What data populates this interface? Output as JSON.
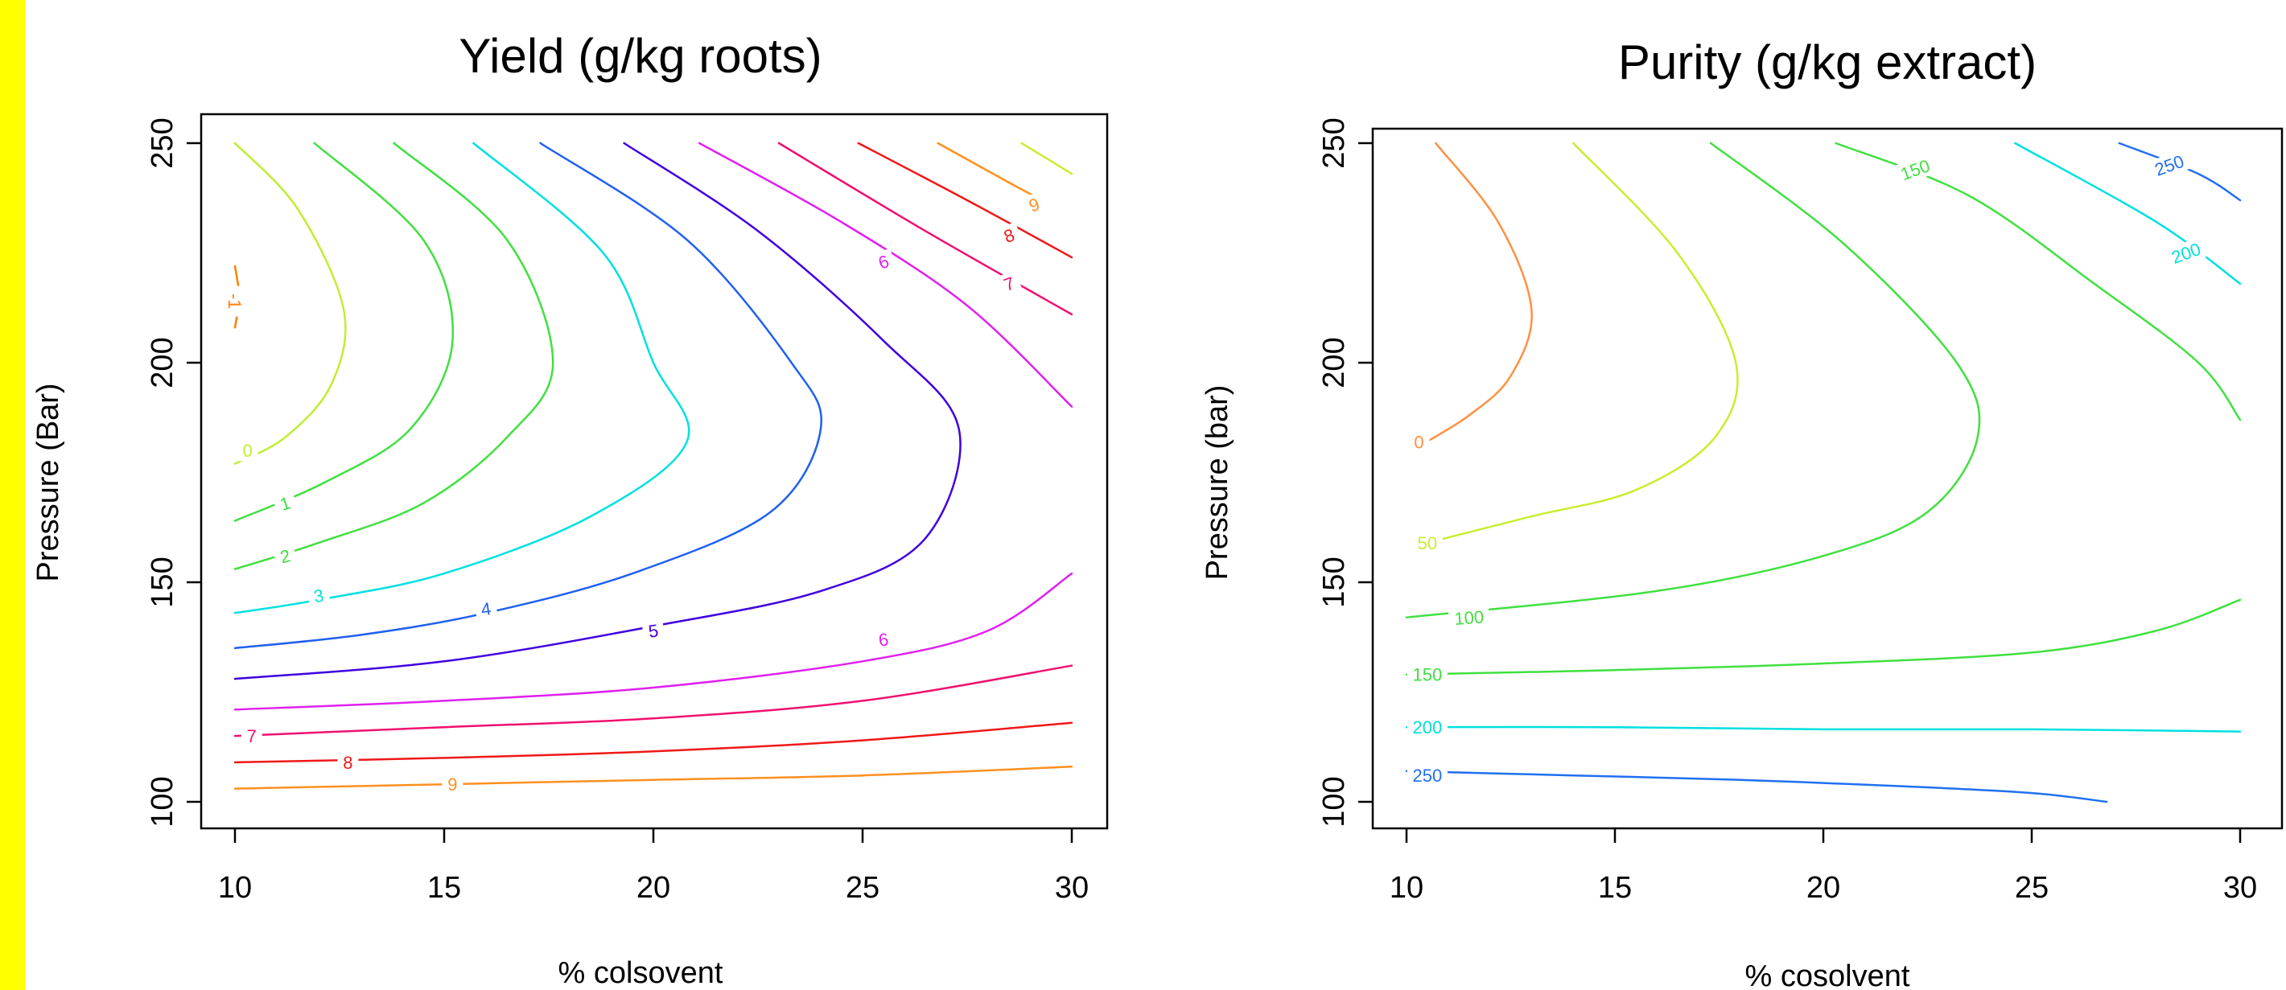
{
  "chart_data": [
    {
      "type": "contour",
      "title": "Yield (g/kg roots)",
      "xlabel": "% colsovent",
      "ylabel": "Pressure (Bar)",
      "xlim": [
        10,
        30
      ],
      "ylim": [
        100,
        250
      ],
      "x_ticks": [
        "10",
        "15",
        "20",
        "25",
        "30"
      ],
      "y_ticks": [
        "100",
        "150",
        "200",
        "250"
      ],
      "contours": [
        {
          "level": "-1",
          "color": "#ff8000",
          "points": [
            [
              10,
              222
            ],
            [
              10.1,
              215
            ],
            [
              10,
              208
            ]
          ],
          "label_at": [
            10,
            214
          ],
          "label_rotate": 90
        },
        {
          "level": "0",
          "color": "#c0ee30",
          "points": [
            [
              10,
              250
            ],
            [
              11.5,
              235
            ],
            [
              12.6,
              212
            ],
            [
              12.3,
              195
            ],
            [
              11.2,
              183
            ],
            [
              10,
              177
            ]
          ],
          "label_at": [
            10.3,
            180
          ],
          "label_rotate": 0
        },
        {
          "level": "1",
          "color": "#40e040",
          "points": [
            [
              11.9,
              250
            ],
            [
              14.5,
              228
            ],
            [
              15.2,
              205
            ],
            [
              14.2,
              185
            ],
            [
              12.2,
              173
            ],
            [
              10,
              164
            ]
          ],
          "label_at": [
            11.2,
            168
          ],
          "label_rotate": -18
        },
        {
          "level": "2",
          "color": "#40e040",
          "points": [
            [
              13.8,
              250
            ],
            [
              16.5,
              228
            ],
            [
              17.6,
              200
            ],
            [
              16.5,
              183
            ],
            [
              14.5,
              168
            ],
            [
              12,
              159
            ],
            [
              10,
              153
            ]
          ],
          "label_at": [
            11.2,
            156
          ],
          "label_rotate": -14
        },
        {
          "level": "3",
          "color": "#00e0e0",
          "points": [
            [
              15.7,
              250
            ],
            [
              18.8,
              225
            ],
            [
              20,
              200
            ],
            [
              20.8,
              182
            ],
            [
              18.5,
              165
            ],
            [
              15,
              152
            ],
            [
              12,
              146
            ],
            [
              10,
              143
            ]
          ],
          "label_at": [
            12,
            147
          ],
          "label_rotate": -10
        },
        {
          "level": "4",
          "color": "#2060f0",
          "points": [
            [
              17.3,
              250
            ],
            [
              20.8,
              228
            ],
            [
              23.3,
              200
            ],
            [
              24,
              185
            ],
            [
              22.8,
              166
            ],
            [
              19.5,
              152
            ],
            [
              16,
              143
            ],
            [
              13,
              138
            ],
            [
              10,
              135
            ]
          ],
          "label_at": [
            16,
            144
          ],
          "label_rotate": -8
        },
        {
          "level": "5",
          "color": "#4000e0",
          "points": [
            [
              19.3,
              250
            ],
            [
              22.5,
              230
            ],
            [
              25.5,
              205
            ],
            [
              27.3,
              185
            ],
            [
              26.5,
              160
            ],
            [
              24,
              148
            ],
            [
              20,
              140
            ],
            [
              15,
              132
            ],
            [
              10,
              128
            ]
          ],
          "label_at": [
            20,
            139
          ],
          "label_rotate": -8
        },
        {
          "level": "6",
          "color": "#e020f0",
          "points": [
            [
              21.1,
              250
            ],
            [
              24.5,
              232
            ],
            [
              27.5,
              213
            ],
            [
              30,
              190
            ]
          ],
          "label_at": [
            25.5,
            223
          ],
          "label_rotate": -20
        },
        {
          "level": "6",
          "color": "#e020f0",
          "points": [
            [
              10,
              121
            ],
            [
              15,
              123
            ],
            [
              20,
              126
            ],
            [
              25,
              132
            ],
            [
              28,
              139
            ],
            [
              30,
              152
            ]
          ],
          "label_at": [
            25.5,
            137
          ],
          "label_rotate": -8
        },
        {
          "level": "7",
          "color": "#f01070",
          "points": [
            [
              23,
              250
            ],
            [
              26.5,
              230
            ],
            [
              30,
              211
            ]
          ],
          "label_at": [
            28.5,
            218
          ],
          "label_rotate": -20
        },
        {
          "level": "7",
          "color": "#f01070",
          "points": [
            [
              10,
              115
            ],
            [
              15,
              117
            ],
            [
              20,
              119
            ],
            [
              25,
              123
            ],
            [
              30,
              131
            ]
          ],
          "label_at": [
            10.4,
            115
          ],
          "label_rotate": 0
        },
        {
          "level": "8",
          "color": "#f01818",
          "points": [
            [
              24.9,
              250
            ],
            [
              27.5,
              237
            ],
            [
              30,
              224
            ]
          ],
          "label_at": [
            28.5,
            229
          ],
          "label_rotate": -20
        },
        {
          "level": "8",
          "color": "#f01818",
          "points": [
            [
              10,
              109
            ],
            [
              15,
              110
            ],
            [
              20,
              111.5
            ],
            [
              25,
              114
            ],
            [
              30,
              118
            ]
          ],
          "label_at": [
            12.7,
            109
          ],
          "label_rotate": 0
        },
        {
          "level": "9",
          "color": "#ff9020",
          "points": [
            [
              26.8,
              250
            ],
            [
              28.6,
              240.5
            ],
            [
              29.3,
              237
            ]
          ],
          "label_at": [
            29.1,
            236
          ],
          "label_rotate": -20
        },
        {
          "level": "9",
          "color": "#ff9020",
          "points": [
            [
              10,
              103
            ],
            [
              15,
              104
            ],
            [
              20,
              105
            ],
            [
              25,
              106
            ],
            [
              30,
              108
            ]
          ],
          "label_at": [
            15.2,
            104
          ],
          "label_rotate": 0
        },
        {
          "level": "",
          "color": "#c8ee30",
          "points": [
            [
              28.8,
              250
            ],
            [
              30,
              243
            ]
          ],
          "label_at": null,
          "label_rotate": 0
        }
      ]
    },
    {
      "type": "contour",
      "title": "Purity (g/kg extract)",
      "xlabel": "% cosolvent",
      "ylabel": "Pressure (bar)",
      "xlim": [
        10,
        30
      ],
      "ylim": [
        100,
        250
      ],
      "x_ticks": [
        "10",
        "15",
        "20",
        "25",
        "30"
      ],
      "y_ticks": [
        "100",
        "150",
        "200",
        "250"
      ],
      "contours": [
        {
          "level": "0",
          "color": "#ff9040",
          "points": [
            [
              10.7,
              250
            ],
            [
              12.2,
              232
            ],
            [
              13,
              212
            ],
            [
              12.5,
              197
            ],
            [
              11.5,
              188
            ],
            [
              10.3,
              181
            ]
          ],
          "label_at": [
            10.3,
            182
          ],
          "label_rotate": 0
        },
        {
          "level": "50",
          "color": "#c8ee30",
          "points": [
            [
              14,
              250
            ],
            [
              16.5,
              225
            ],
            [
              17.9,
              200
            ],
            [
              17.4,
              183
            ],
            [
              15.5,
              171
            ],
            [
              13,
              165
            ],
            [
              10.5,
              159
            ]
          ],
          "label_at": [
            10.5,
            159
          ],
          "label_rotate": 0
        },
        {
          "level": "100",
          "color": "#40e040",
          "points": [
            [
              17.3,
              250
            ],
            [
              20.5,
              227
            ],
            [
              23.2,
              200
            ],
            [
              23.7,
              183
            ],
            [
              22.5,
              166
            ],
            [
              20,
              156
            ],
            [
              16,
              148
            ],
            [
              10,
              142
            ]
          ],
          "label_at": [
            11.5,
            142
          ],
          "label_rotate": -4
        },
        {
          "level": "150",
          "color": "#40e040",
          "points": [
            [
              20.3,
              250
            ],
            [
              23.5,
              238
            ],
            [
              26.5,
              218
            ],
            [
              29,
              200
            ],
            [
              30,
              187
            ]
          ],
          "label_at": [
            22.2,
            244
          ],
          "label_rotate": -20
        },
        {
          "level": "150",
          "color": "#40e040",
          "points": [
            [
              10,
              129
            ],
            [
              15,
              130
            ],
            [
              20,
              131.5
            ],
            [
              25,
              134
            ],
            [
              28,
              139
            ],
            [
              30,
              146
            ]
          ],
          "label_at": [
            10.5,
            129
          ],
          "label_rotate": 0
        },
        {
          "level": "200",
          "color": "#00e0e0",
          "points": [
            [
              24.6,
              250
            ],
            [
              28,
              232
            ],
            [
              30,
              218
            ]
          ],
          "label_at": [
            28.7,
            225
          ],
          "label_rotate": -20
        },
        {
          "level": "200",
          "color": "#00e0e0",
          "points": [
            [
              10,
              117
            ],
            [
              15,
              117
            ],
            [
              20,
              116.5
            ],
            [
              25,
              116.5
            ],
            [
              30,
              116
            ]
          ],
          "label_at": [
            10.5,
            117
          ],
          "label_rotate": 0
        },
        {
          "level": "250",
          "color": "#2070f0",
          "points": [
            [
              27.1,
              250
            ],
            [
              29,
              243
            ],
            [
              30,
              237
            ]
          ],
          "label_at": [
            28.3,
            245
          ],
          "label_rotate": -20
        },
        {
          "level": "250",
          "color": "#2070f0",
          "points": [
            [
              10,
              107
            ],
            [
              14,
              106
            ],
            [
              18,
              105
            ],
            [
              22,
              103.5
            ],
            [
              25,
              102
            ],
            [
              26.8,
              100
            ]
          ],
          "label_at": [
            10.5,
            106
          ],
          "label_rotate": 0
        }
      ]
    }
  ]
}
